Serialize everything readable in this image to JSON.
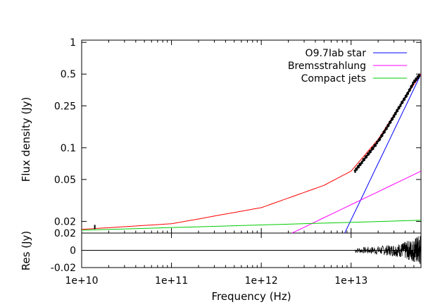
{
  "chart_data": [
    {
      "type": "line",
      "xlabel": "Frequency (Hz)",
      "ylabel": "Flux density (Jy)",
      "xscale": "log",
      "yscale": "log",
      "xlim": [
        10000000000.0,
        60000000000000.0
      ],
      "ylim": [
        0.0155,
        1.05
      ],
      "x_ticks": [
        {
          "value": 10000000000.0,
          "label": "1e+10"
        },
        {
          "value": 100000000000.0,
          "label": "1e+11"
        },
        {
          "value": 1000000000000.0,
          "label": "1e+12"
        },
        {
          "value": 10000000000000.0,
          "label": "1e+13"
        }
      ],
      "y_ticks": [
        {
          "value": 1,
          "label": "1"
        },
        {
          "value": 0.5,
          "label": "0.5"
        },
        {
          "value": 0.25,
          "label": "0.25"
        },
        {
          "value": 0.1,
          "label": "0.1"
        },
        {
          "value": 0.05,
          "label": "0.05"
        },
        {
          "value": 0.02,
          "label": "0.02"
        }
      ],
      "legend_position": "top-right",
      "series": [
        {
          "name": "O9.7Iab star",
          "color": "#0000ff",
          "x": [
            8500000000000.0,
            60000000000000.0
          ],
          "y": [
            0.0155,
            0.5
          ]
        },
        {
          "name": "Bremsstrahlung",
          "color": "#ff00ff",
          "x": [
            2200000000000.0,
            60000000000000.0
          ],
          "y": [
            0.0155,
            0.06
          ]
        },
        {
          "name": "Compact jets",
          "color": "#00cc00",
          "x": [
            10000000000.0,
            60000000000000.0
          ],
          "y": [
            0.0165,
            0.0205
          ]
        },
        {
          "color": "#ff0000",
          "x": [
            10000000000.0,
            100000000000.0,
            1000000000000.0,
            5000000000000.0,
            10000000000000.0,
            20000000000000.0,
            40000000000000.0,
            60000000000000.0
          ],
          "y": [
            0.0168,
            0.019,
            0.027,
            0.044,
            0.06,
            0.12,
            0.3,
            0.5
          ]
        },
        {
          "color": "#000000",
          "marker": "dots",
          "x": [
            14000000000.0,
            11000000000000.0,
            13000000000000.0,
            16000000000000.0,
            20000000000000.0,
            25000000000000.0,
            30000000000000.0,
            35000000000000.0,
            42000000000000.0,
            50000000000000.0,
            58000000000000.0
          ],
          "y": [
            0.0177,
            0.06,
            0.072,
            0.09,
            0.115,
            0.155,
            0.2,
            0.25,
            0.32,
            0.42,
            0.49
          ]
        }
      ]
    },
    {
      "type": "line",
      "ylabel": "Res (Jy)",
      "xscale": "log",
      "xlim": [
        10000000000.0,
        60000000000000.0
      ],
      "ylim": [
        -0.02,
        0.02
      ],
      "y_ticks": [
        {
          "value": 0.02,
          "label": "0.02"
        },
        {
          "value": 0,
          "label": "0"
        },
        {
          "value": -0.02,
          "label": "-0.02"
        }
      ],
      "series": [
        {
          "color": "#000000",
          "x": [
            10000000000.0,
            60000000000000.0
          ],
          "y": [
            0,
            0
          ]
        },
        {
          "color": "#000000",
          "marker": "noise",
          "x": [
            11000000000000.0,
            15000000000000.0,
            20000000000000.0,
            25000000000000.0,
            30000000000000.0,
            35000000000000.0,
            40000000000000.0,
            45000000000000.0,
            50000000000000.0,
            55000000000000.0,
            60000000000000.0
          ],
          "amplitude": [
            0.003,
            0.004,
            0.005,
            0.006,
            0.007,
            0.008,
            0.01,
            0.012,
            0.014,
            0.017,
            0.02
          ]
        }
      ]
    }
  ]
}
